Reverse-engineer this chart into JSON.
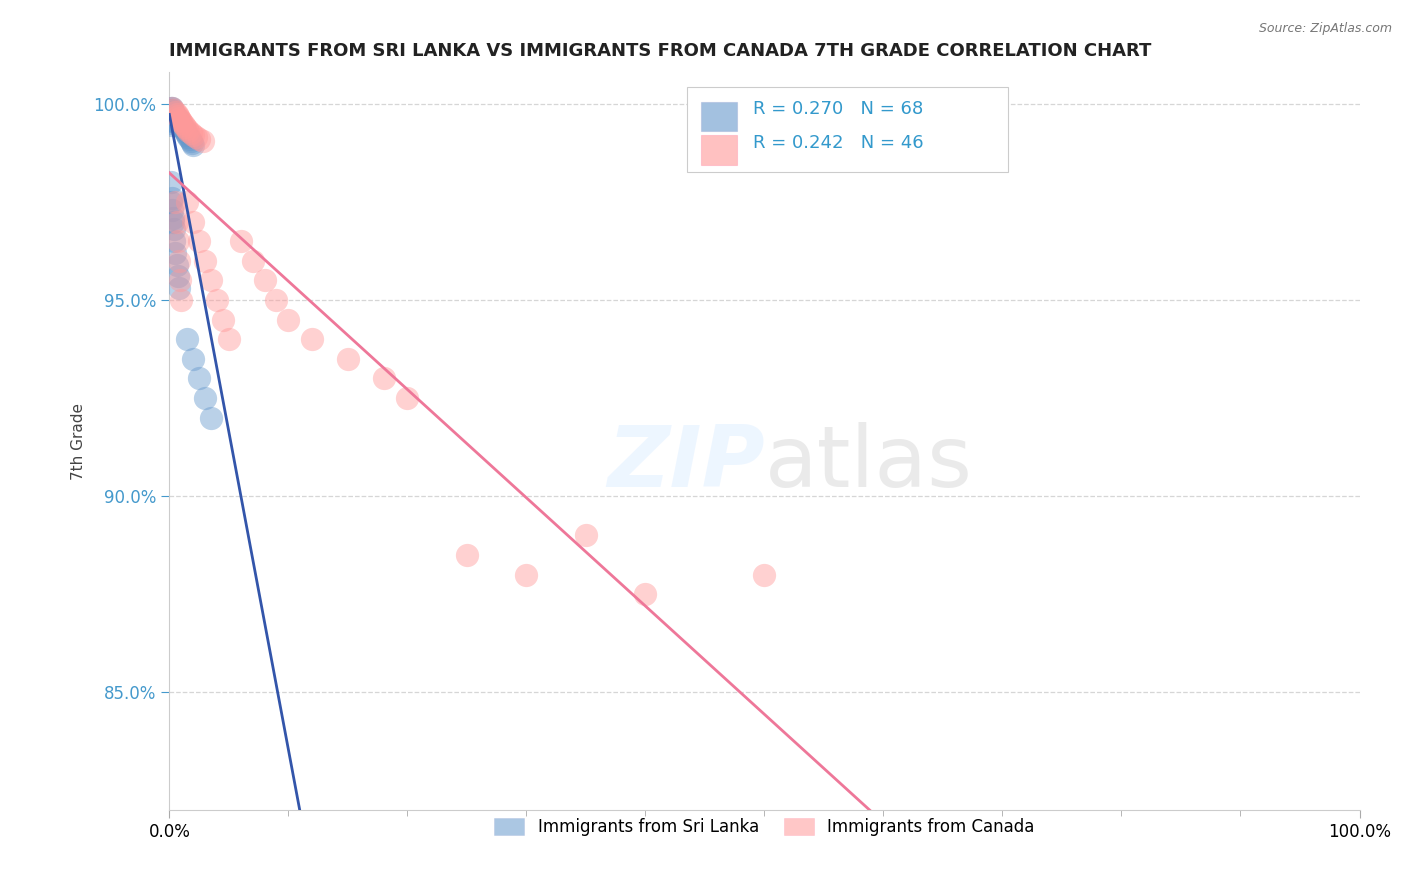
{
  "title": "IMMIGRANTS FROM SRI LANKA VS IMMIGRANTS FROM CANADA 7TH GRADE CORRELATION CHART",
  "source": "Source: ZipAtlas.com",
  "ylabel": "7th Grade",
  "xlim": [
    0.0,
    1.0
  ],
  "ylim": [
    0.82,
    1.008
  ],
  "yticks": [
    0.85,
    0.9,
    0.95,
    1.0
  ],
  "ytick_labels": [
    "85.0%",
    "90.0%",
    "95.0%",
    "100.0%"
  ],
  "xtick_labels": [
    "0.0%",
    "100.0%"
  ],
  "legend1_label": "Immigrants from Sri Lanka",
  "legend2_label": "Immigrants from Canada",
  "R1": 0.27,
  "N1": 68,
  "R2": 0.242,
  "N2": 46,
  "color_sri_lanka": "#6699CC",
  "color_canada": "#FF9999",
  "trend1_color": "#3355AA",
  "trend2_color": "#EE7799",
  "sl_x": [
    0.001,
    0.001,
    0.001,
    0.001,
    0.001,
    0.001,
    0.001,
    0.001,
    0.001,
    0.001,
    0.002,
    0.002,
    0.002,
    0.002,
    0.002,
    0.002,
    0.002,
    0.003,
    0.003,
    0.003,
    0.003,
    0.003,
    0.003,
    0.004,
    0.004,
    0.004,
    0.004,
    0.005,
    0.005,
    0.005,
    0.006,
    0.006,
    0.006,
    0.007,
    0.007,
    0.008,
    0.008,
    0.009,
    0.009,
    0.01,
    0.01,
    0.011,
    0.012,
    0.013,
    0.014,
    0.015,
    0.016,
    0.017,
    0.018,
    0.019,
    0.02,
    0.001,
    0.001,
    0.002,
    0.002,
    0.003,
    0.003,
    0.004,
    0.004,
    0.005,
    0.006,
    0.007,
    0.008,
    0.015,
    0.02,
    0.025,
    0.03,
    0.035
  ],
  "sl_y": [
    0.999,
    0.9985,
    0.998,
    0.9975,
    0.997,
    0.9965,
    0.996,
    0.9955,
    0.995,
    0.9945,
    0.999,
    0.9985,
    0.998,
    0.9975,
    0.997,
    0.9965,
    0.996,
    0.998,
    0.9975,
    0.997,
    0.9965,
    0.996,
    0.9955,
    0.9975,
    0.997,
    0.9965,
    0.996,
    0.997,
    0.9965,
    0.996,
    0.9965,
    0.996,
    0.9955,
    0.996,
    0.9955,
    0.9955,
    0.995,
    0.995,
    0.9945,
    0.9945,
    0.994,
    0.994,
    0.9935,
    0.993,
    0.9925,
    0.992,
    0.9915,
    0.991,
    0.9905,
    0.99,
    0.9895,
    0.98,
    0.975,
    0.976,
    0.973,
    0.971,
    0.97,
    0.968,
    0.965,
    0.962,
    0.959,
    0.956,
    0.953,
    0.94,
    0.935,
    0.93,
    0.925,
    0.92
  ],
  "ca_x": [
    0.002,
    0.003,
    0.005,
    0.006,
    0.007,
    0.008,
    0.009,
    0.01,
    0.011,
    0.012,
    0.013,
    0.015,
    0.016,
    0.018,
    0.02,
    0.022,
    0.025,
    0.028,
    0.015,
    0.02,
    0.025,
    0.03,
    0.035,
    0.04,
    0.045,
    0.05,
    0.005,
    0.006,
    0.007,
    0.008,
    0.009,
    0.01,
    0.06,
    0.07,
    0.08,
    0.09,
    0.1,
    0.12,
    0.15,
    0.18,
    0.2,
    0.25,
    0.3,
    0.35,
    0.4,
    0.5
  ],
  "ca_y": [
    0.999,
    0.9985,
    0.998,
    0.9975,
    0.997,
    0.9965,
    0.996,
    0.9955,
    0.995,
    0.9945,
    0.994,
    0.9935,
    0.993,
    0.9925,
    0.992,
    0.9915,
    0.991,
    0.9905,
    0.975,
    0.97,
    0.965,
    0.96,
    0.955,
    0.95,
    0.945,
    0.94,
    0.975,
    0.97,
    0.965,
    0.96,
    0.955,
    0.95,
    0.965,
    0.96,
    0.955,
    0.95,
    0.945,
    0.94,
    0.935,
    0.93,
    0.925,
    0.885,
    0.88,
    0.89,
    0.875,
    0.88
  ]
}
